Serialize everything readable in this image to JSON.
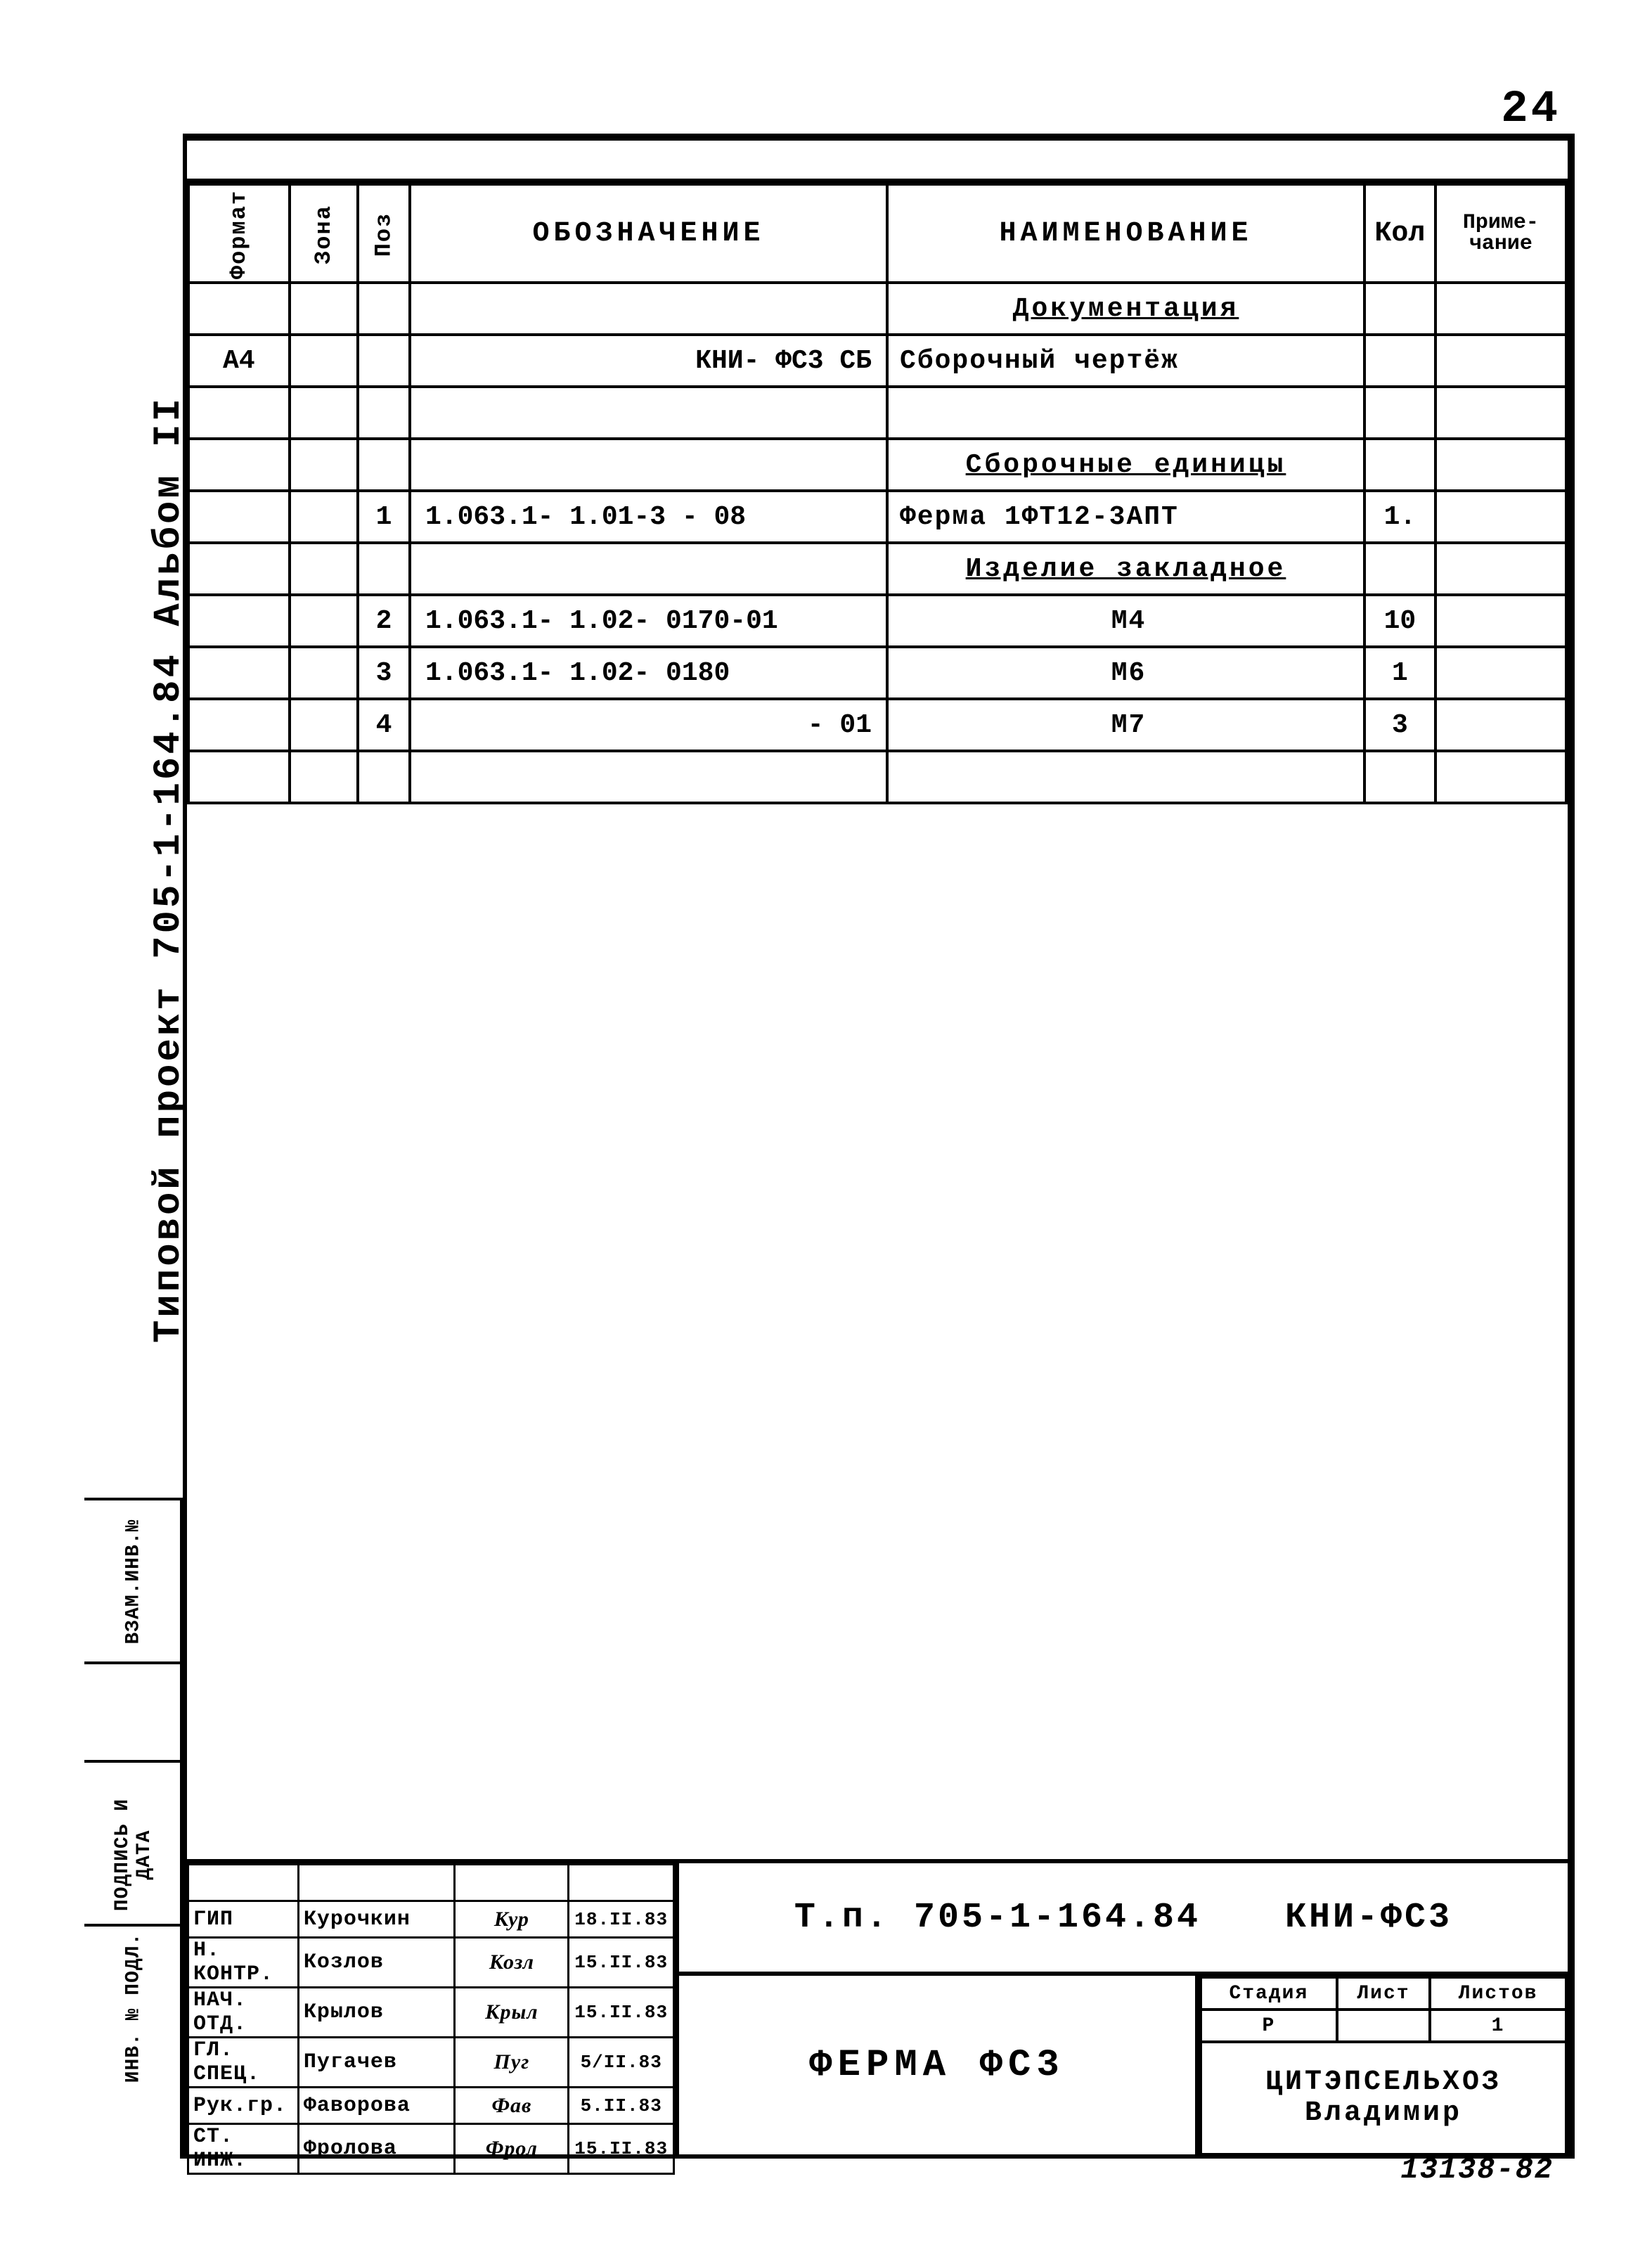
{
  "page_number": "24",
  "project_code_vertical": "Типовой проект 705-1-164.84  Альбом II",
  "left_strip_labels": [
    "ВЗАМ.ИНВ.№",
    "ПОДПИСЬ И ДАТА",
    "ИНВ. № ПОДЛ."
  ],
  "spec_headers": {
    "format": "Формат",
    "zona": "Зона",
    "poz": "Поз",
    "oboz": "ОБОЗНАЧЕНИЕ",
    "naim": "НАИМЕНОВАНИЕ",
    "kol": "Кол",
    "prim": "Приме-\nчание"
  },
  "spec_rows": [
    {
      "format": "",
      "zona": "",
      "poz": "",
      "oboz": "",
      "naim": "Документация",
      "naim_underline": true,
      "kol": "",
      "prim": ""
    },
    {
      "format": "А4",
      "zona": "",
      "poz": "",
      "oboz": "КНИ- ФС3 СБ",
      "oboz_align": "right",
      "naim": "Сборочный чертёж",
      "kol": "",
      "prim": ""
    },
    {
      "format": "",
      "zona": "",
      "poz": "",
      "oboz": "",
      "naim": "",
      "kol": "",
      "prim": ""
    },
    {
      "format": "",
      "zona": "",
      "poz": "",
      "oboz": "",
      "naim": "Сборочные единицы",
      "naim_underline": true,
      "kol": "",
      "prim": ""
    },
    {
      "format": "",
      "zona": "",
      "poz": "1",
      "oboz": "1.063.1- 1.01-3 - 08",
      "naim": "Ферма 1ФТ12-3АПТ",
      "kol": "1.",
      "prim": ""
    },
    {
      "format": "",
      "zona": "",
      "poz": "",
      "oboz": "",
      "naim": "Изделие закладное",
      "naim_underline": true,
      "kol": "",
      "prim": ""
    },
    {
      "format": "",
      "zona": "",
      "poz": "2",
      "oboz": "1.063.1- 1.02- 0170-01",
      "naim": "М4",
      "naim_center": true,
      "kol": "10",
      "prim": ""
    },
    {
      "format": "",
      "zona": "",
      "poz": "3",
      "oboz": "1.063.1- 1.02- 0180",
      "naim": "М6",
      "naim_center": true,
      "kol": "1",
      "prim": ""
    },
    {
      "format": "",
      "zona": "",
      "poz": "4",
      "oboz": "- 01",
      "oboz_align": "right",
      "naim": "М7",
      "naim_center": true,
      "kol": "3",
      "prim": ""
    },
    {
      "format": "",
      "zona": "",
      "poz": "",
      "oboz": "",
      "naim": "",
      "kol": "",
      "prim": ""
    }
  ],
  "title_block": {
    "roles": [
      {
        "role": "",
        "name": "",
        "sign": "",
        "date": ""
      },
      {
        "role": "ГИП",
        "name": "Курочкин",
        "sign": "Кур",
        "date": "18.II.83"
      },
      {
        "role": "Н. КОНТР.",
        "name": "Козлов",
        "sign": "Козл",
        "date": "15.II.83"
      },
      {
        "role": "НАЧ. ОТД.",
        "name": "Крылов",
        "sign": "Крыл",
        "date": "15.II.83"
      },
      {
        "role": "ГЛ. СПЕЦ.",
        "name": "Пугачев",
        "sign": "Пуг",
        "date": "5/II.83"
      },
      {
        "role": "Рук.гр.",
        "name": "Фаворова",
        "sign": "Фав",
        "date": "5.II.83"
      },
      {
        "role": "СТ. ИНЖ.",
        "name": "Фролова",
        "sign": "Фрол",
        "date": "15.II.83"
      }
    ],
    "tp_code": "Т.п. 705-1-164.84",
    "doc_code": "КНИ-ФС3",
    "title": "ФЕРМА  ФС3",
    "stage_hdr": "Стадия",
    "sheet_hdr": "Лист",
    "sheets_hdr": "Листов",
    "stage": "Р",
    "sheet": "",
    "sheets": "1",
    "org": "ЦИТЭПСЕЛЬХОЗ\nВладимир"
  },
  "footer_code": "13138-82",
  "colors": {
    "ink": "#000000",
    "bg": "#ffffff"
  }
}
